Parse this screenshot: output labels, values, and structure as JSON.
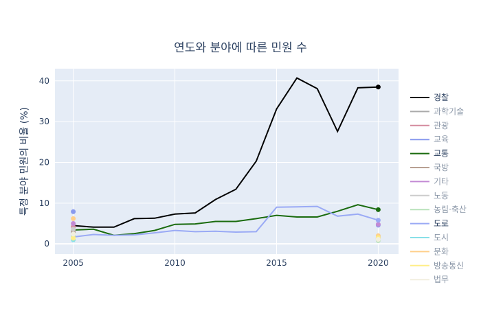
{
  "chart_data": {
    "type": "line",
    "title": "연도와 분야에 따른 민원 수",
    "xlabel": "",
    "ylabel": "특정 분야 민원의 비율 (%)",
    "xlim": [
      2004.1,
      2021.0
    ],
    "ylim": [
      -2.5,
      43
    ],
    "x_ticks": [
      2005,
      2010,
      2015,
      2020
    ],
    "y_ticks": [
      0,
      10,
      20,
      30,
      40
    ],
    "grid": true,
    "legend_position": "right",
    "series": [
      {
        "name": "경찰",
        "color": "#000000",
        "x": [
          2005,
          2006,
          2007,
          2008,
          2009,
          2010,
          2011,
          2012,
          2013,
          2014,
          2015,
          2016,
          2017,
          2018,
          2019,
          2020
        ],
        "y": [
          4.5,
          4.1,
          4.1,
          6.2,
          6.3,
          7.3,
          7.6,
          10.9,
          13.4,
          20.3,
          33.1,
          40.7,
          38.1,
          27.6,
          38.3,
          38.5
        ],
        "end_markers": "last"
      },
      {
        "name": "과학기술",
        "color": "#aaaaaa",
        "x": [
          2005,
          2020
        ],
        "y": [
          2.8,
          1.3
        ],
        "end_markers": "both"
      },
      {
        "name": "관광",
        "color": "#d48a9e",
        "x": [
          2005,
          2020
        ],
        "y": [
          4.2,
          1.6
        ],
        "end_markers": "both"
      },
      {
        "name": "교육",
        "color": "#8899ee",
        "x": [
          2005,
          2020
        ],
        "y": [
          7.9,
          4.6
        ],
        "end_markers": "both"
      },
      {
        "name": "교통",
        "color": "#1a6b0e",
        "x": [
          2005,
          2006,
          2007,
          2008,
          2009,
          2010,
          2011,
          2012,
          2013,
          2014,
          2015,
          2016,
          2017,
          2018,
          2019,
          2020
        ],
        "y": [
          3.4,
          3.6,
          2.1,
          2.5,
          3.3,
          4.8,
          4.9,
          5.5,
          5.5,
          6.2,
          7.0,
          6.6,
          6.6,
          8.0,
          9.6,
          8.4
        ],
        "end_markers": "last"
      },
      {
        "name": "국방",
        "color": "#b8a092",
        "x": [
          2005,
          2020
        ],
        "y": [
          3.2,
          1.2
        ],
        "end_markers": "both"
      },
      {
        "name": "기타",
        "color": "#c38ad4",
        "x": [
          2005,
          2020
        ],
        "y": [
          5.0,
          4.8
        ],
        "end_markers": "both"
      },
      {
        "name": "노동",
        "color": "#cccccc",
        "x": [
          2005,
          2020
        ],
        "y": [
          3.6,
          1.1
        ],
        "end_markers": "both"
      },
      {
        "name": "농림·축산",
        "color": "#b9e2bb",
        "x": [
          2005,
          2020
        ],
        "y": [
          1.9,
          0.8
        ],
        "end_markers": "both"
      },
      {
        "name": "도로",
        "color": "#9aaaf5",
        "x": [
          2005,
          2006,
          2007,
          2008,
          2009,
          2010,
          2011,
          2012,
          2013,
          2014,
          2015,
          2016,
          2017,
          2018,
          2019,
          2020
        ],
        "y": [
          1.7,
          2.3,
          2.1,
          2.2,
          2.7,
          3.3,
          3.0,
          3.1,
          2.9,
          3.0,
          9.0,
          9.1,
          9.2,
          6.8,
          7.3,
          5.8
        ],
        "end_markers": "last"
      },
      {
        "name": "도시",
        "color": "#88e0e8",
        "x": [
          2005,
          2020
        ],
        "y": [
          1.0,
          1.9
        ],
        "end_markers": "both"
      },
      {
        "name": "문화",
        "color": "#ffcf8a",
        "x": [
          2005,
          2020
        ],
        "y": [
          6.2,
          2.0
        ],
        "end_markers": "both"
      },
      {
        "name": "방송통신",
        "color": "#ffee88",
        "x": [
          2005,
          2020
        ],
        "y": [
          1.4,
          1.5
        ],
        "end_markers": "both"
      },
      {
        "name": "법무",
        "color": "#f2efdf",
        "x": [
          2005,
          2020
        ],
        "y": [
          2.4,
          1.1
        ],
        "end_markers": "both"
      }
    ]
  },
  "colors": {
    "plot_bg": "#e5ecf6",
    "grid": "#ffffff",
    "text": "#2a3f5f"
  }
}
